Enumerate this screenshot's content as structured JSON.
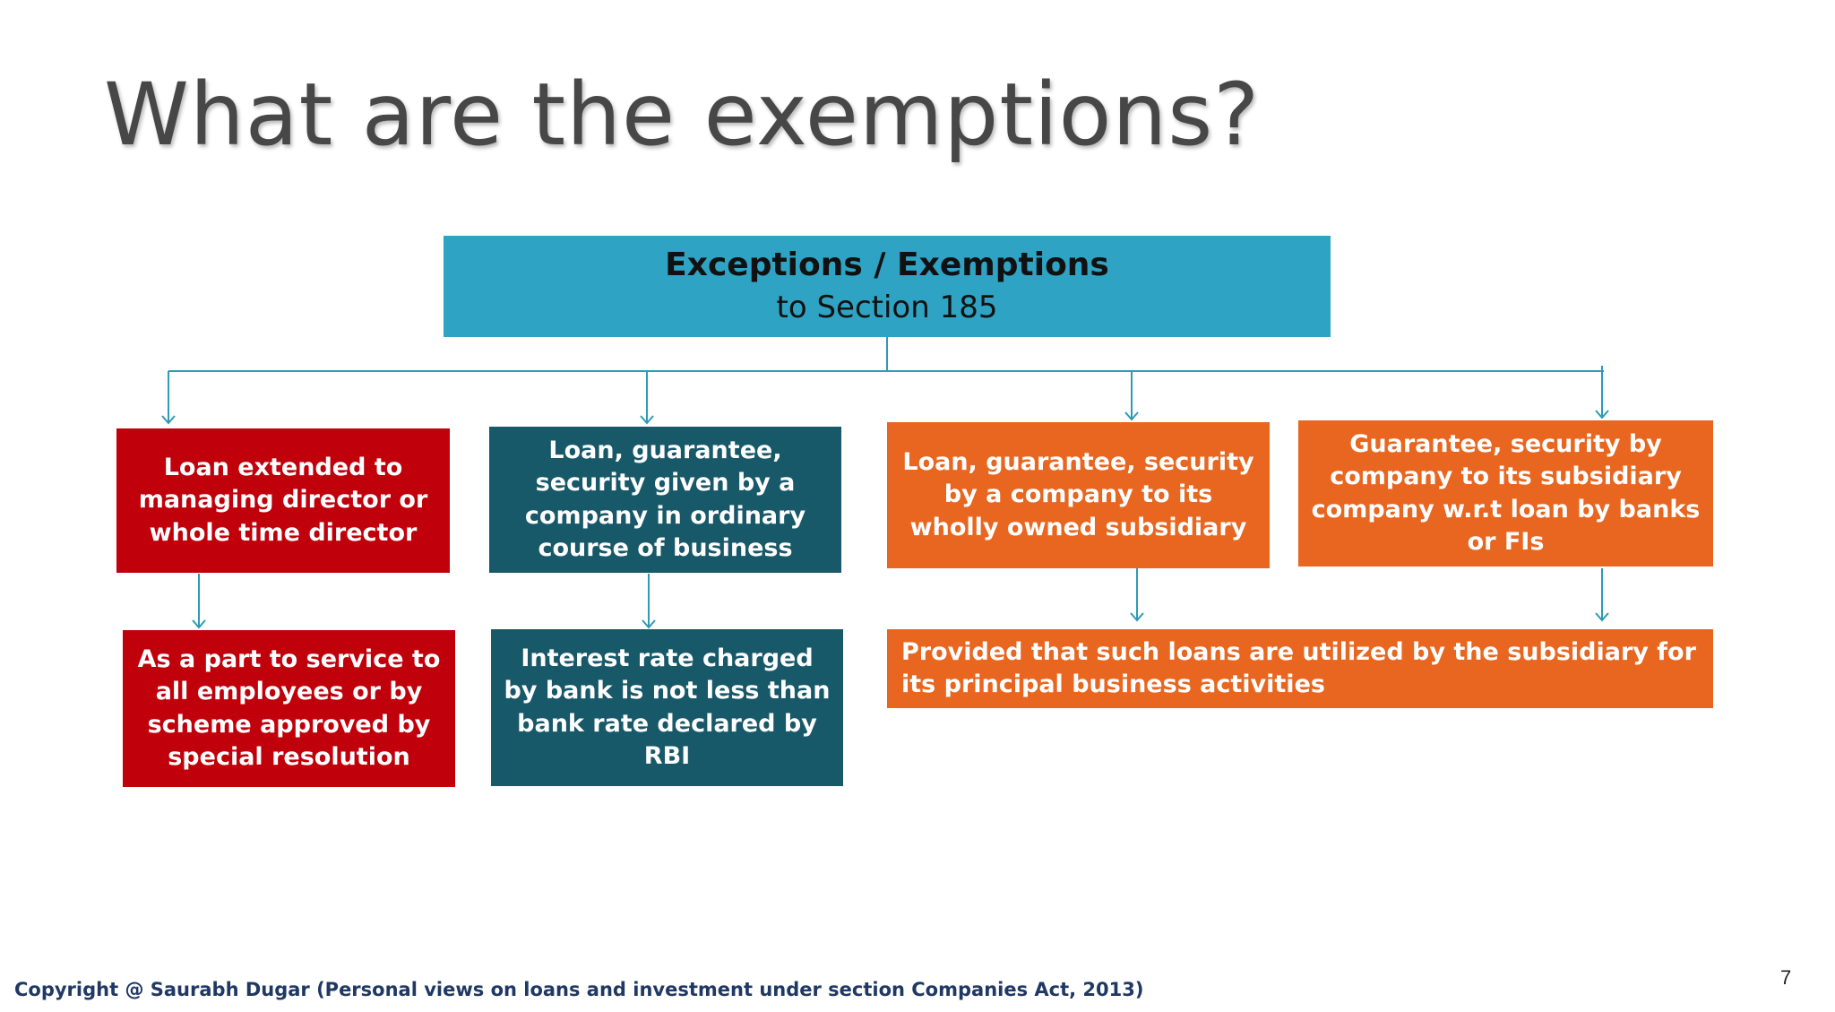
{
  "title": "What are the exemptions?",
  "diagram": {
    "root": {
      "title": "Exceptions / Exemptions",
      "subtitle": "to Section 185"
    },
    "branches": [
      {
        "label": "Loan extended to managing director or whole time director",
        "condition": "As a part to service to all employees or by scheme approved by special resolution",
        "color": "#c0000b"
      },
      {
        "label": "Loan, guarantee, security given by a company in ordinary course of business",
        "condition": "Interest rate charged by bank is not less than bank rate declared by RBI",
        "color": "#175869"
      },
      {
        "label": "Loan, guarantee, security by a company to its wholly owned subsidiary",
        "color": "#e8661f"
      },
      {
        "label": "Guarantee, security by company to its subsidiary company w.r.t loan by banks or FIs",
        "color": "#e8661f"
      }
    ],
    "shared_condition": "Provided that such loans are utilized by the subsidiary for its principal business activities",
    "colors": {
      "root": "#2ea3c3",
      "connector": "#2e9ab5"
    }
  },
  "footer": "Copyright @ Saurabh Dugar (Personal views on loans and investment under section Companies Act, 2013)",
  "page_number": "7"
}
